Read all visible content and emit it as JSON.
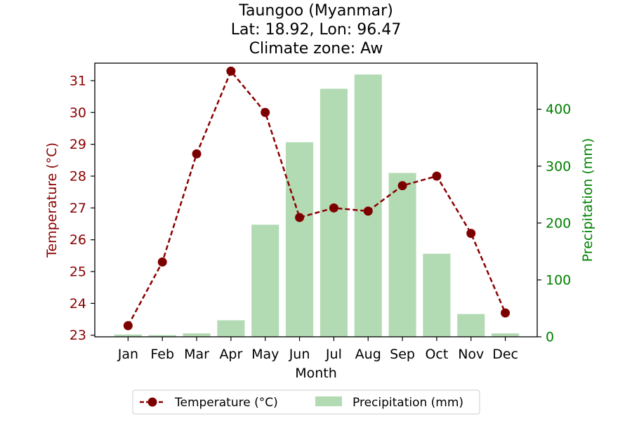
{
  "chart_data": {
    "type": "bar",
    "title_lines": [
      "Taungoo (Myanmar)",
      "Lat: 18.92, Lon: 96.47",
      "Climate zone: Aw"
    ],
    "xlabel": "Month",
    "ylabel_left": "Temperature (°C)",
    "ylabel_right": "Precipitation (mm)",
    "categories": [
      "Jan",
      "Feb",
      "Mar",
      "Apr",
      "May",
      "Jun",
      "Jul",
      "Aug",
      "Sep",
      "Oct",
      "Nov",
      "Dec"
    ],
    "left_axis": {
      "ylim": [
        22.95,
        31.55
      ],
      "ticks": [
        23,
        24,
        25,
        26,
        27,
        28,
        29,
        30,
        31
      ]
    },
    "right_axis": {
      "ylim": [
        0,
        481
      ],
      "ticks": [
        0,
        100,
        200,
        300,
        400
      ]
    },
    "series": [
      {
        "name": "Temperature (°C)",
        "type": "line",
        "axis": "left",
        "style": "dashed-with-circle-markers",
        "color": "#8b0000",
        "values": [
          23.3,
          25.3,
          28.7,
          31.3,
          30.0,
          26.7,
          27.0,
          26.9,
          27.7,
          28.0,
          26.2,
          23.7
        ]
      },
      {
        "name": "Precipitation (mm)",
        "type": "bar",
        "axis": "right",
        "color": "#b2dab3",
        "values": [
          4,
          3,
          6,
          29,
          197,
          342,
          436,
          461,
          288,
          146,
          40,
          6
        ]
      }
    ],
    "legend": {
      "placement": "bottom-center, below plot"
    },
    "colors": {
      "left_axis": "#8b0000",
      "right_axis": "#008000"
    },
    "grid": false
  }
}
